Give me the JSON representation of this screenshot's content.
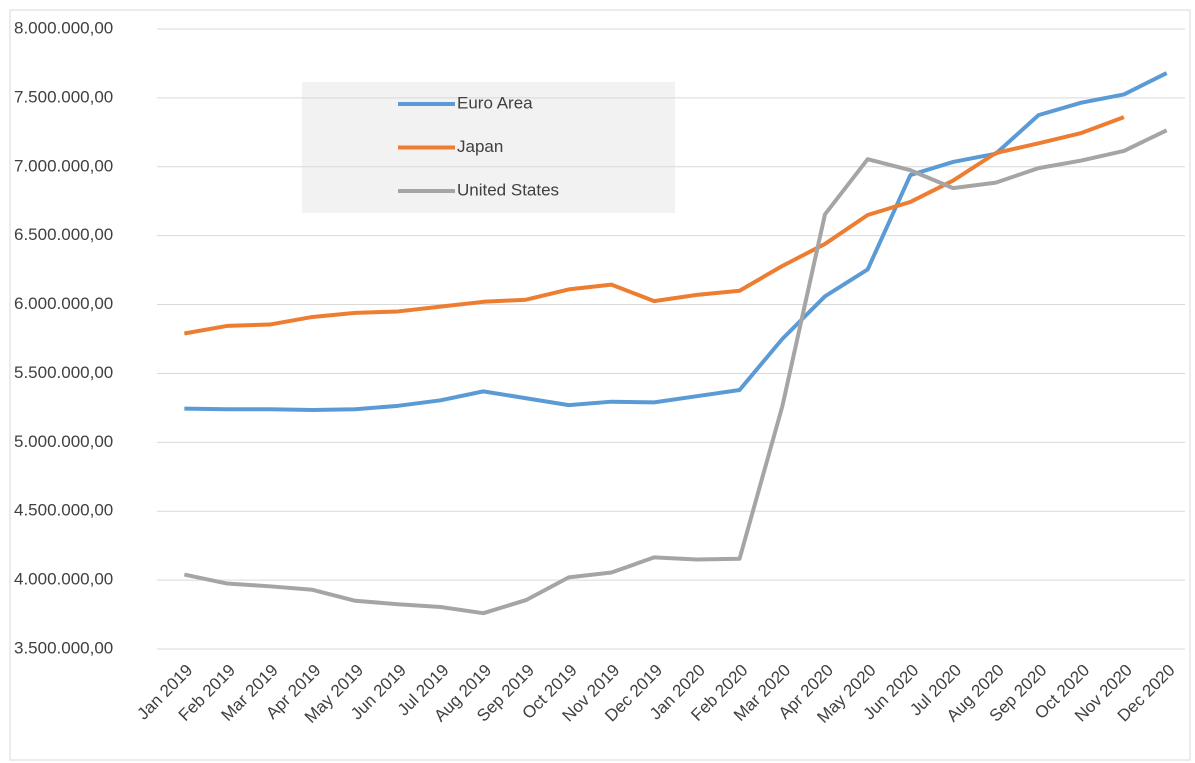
{
  "chart_data": {
    "type": "line",
    "categories": [
      "Jan 2019",
      "Feb 2019",
      "Mar 2019",
      "Apr 2019",
      "May 2019",
      "Jun 2019",
      "Jul 2019",
      "Aug 2019",
      "Sep 2019",
      "Oct 2019",
      "Nov 2019",
      "Dec 2019",
      "Jan 2020",
      "Feb 2020",
      "Mar 2020",
      "Apr 2020",
      "May 2020",
      "Jun 2020",
      "Jul 2020",
      "Aug 2020",
      "Sep 2020",
      "Oct 2020",
      "Nov 2020",
      "Dec 2020"
    ],
    "series": [
      {
        "name": "Euro Area",
        "color": "#5b9bd5",
        "values": [
          5245000,
          5240000,
          5240000,
          5235000,
          5240000,
          5265000,
          5305000,
          5370000,
          5320000,
          5270000,
          5295000,
          5290000,
          5335000,
          5380000,
          5750000,
          6060000,
          6255000,
          6940000,
          7035000,
          7095000,
          7375000,
          7465000,
          7525000,
          7680000
        ]
      },
      {
        "name": "Japan",
        "color": "#ed7d31",
        "values": [
          5790000,
          5845000,
          5855000,
          5910000,
          5940000,
          5950000,
          5985000,
          6020000,
          6035000,
          6110000,
          6145000,
          6025000,
          6070000,
          6100000,
          6280000,
          6440000,
          6650000,
          6745000,
          6900000,
          7100000,
          7170000,
          7245000,
          7360000,
          null
        ]
      },
      {
        "name": "United States",
        "color": "#a5a5a5",
        "values": [
          4040000,
          3975000,
          3955000,
          3930000,
          3850000,
          3825000,
          3805000,
          3760000,
          3855000,
          4020000,
          4055000,
          4165000,
          4150000,
          4155000,
          5260000,
          6655000,
          7055000,
          6975000,
          6845000,
          6885000,
          6990000,
          7045000,
          7115000,
          7265000
        ]
      }
    ],
    "ylim": [
      3500000,
      8000000
    ],
    "yticks": [
      {
        "value": 3500000,
        "label": "3.500.000,00"
      },
      {
        "value": 4000000,
        "label": "4.000.000,00"
      },
      {
        "value": 4500000,
        "label": "4.500.000,00"
      },
      {
        "value": 5000000,
        "label": "5.000.000,00"
      },
      {
        "value": 5500000,
        "label": "5.500.000,00"
      },
      {
        "value": 6000000,
        "label": "6.000.000,00"
      },
      {
        "value": 6500000,
        "label": "6.500.000,00"
      },
      {
        "value": 7000000,
        "label": "7.000.000,00"
      },
      {
        "value": 7500000,
        "label": "7.500.000,00"
      },
      {
        "value": 8000000,
        "label": "8.000.000,00"
      }
    ],
    "grid": true
  }
}
